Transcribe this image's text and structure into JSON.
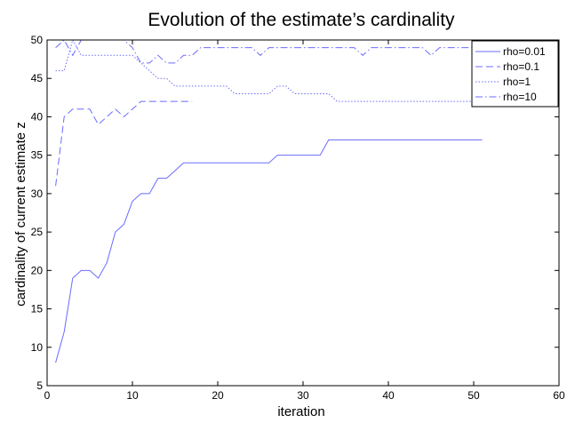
{
  "chart_data": {
    "type": "line",
    "title": "Evolution of the estimate’s cardinality",
    "xlabel": "iteration",
    "ylabel": "cardinality of current estimate z",
    "xlim": [
      0,
      60
    ],
    "ylim": [
      5,
      50
    ],
    "xticks": [
      0,
      10,
      20,
      30,
      40,
      50,
      60
    ],
    "yticks": [
      5,
      10,
      15,
      20,
      25,
      30,
      35,
      40,
      45,
      50
    ],
    "grid": false,
    "legend_position": "top-right",
    "line_color": "#6b6bff",
    "series": [
      {
        "name": "rho=0.01",
        "style": "solid",
        "x": [
          1,
          2,
          3,
          4,
          5,
          6,
          7,
          8,
          9,
          10,
          11,
          12,
          13,
          14,
          15,
          16,
          17,
          18,
          19,
          20,
          21,
          22,
          23,
          24,
          25,
          26,
          27,
          28,
          29,
          30,
          31,
          32,
          33,
          34,
          35,
          36,
          37,
          38,
          39,
          40,
          41,
          42,
          43,
          44,
          45,
          46,
          47,
          48,
          49,
          50,
          51
        ],
        "y": [
          8,
          12,
          19,
          20,
          20,
          19,
          21,
          25,
          26,
          29,
          30,
          30,
          32,
          32,
          33,
          34,
          34,
          34,
          34,
          34,
          34,
          34,
          34,
          34,
          34,
          34,
          35,
          35,
          35,
          35,
          35,
          35,
          37,
          37,
          37,
          37,
          37,
          37,
          37,
          37,
          37,
          37,
          37,
          37,
          37,
          37,
          37,
          37,
          37,
          37,
          37
        ]
      },
      {
        "name": "rho=0.1",
        "style": "dashed",
        "x": [
          1,
          2,
          3,
          4,
          5,
          6,
          7,
          8,
          9,
          10,
          11,
          12,
          13,
          14,
          15,
          16,
          17
        ],
        "y": [
          31,
          40,
          41,
          41,
          41,
          39,
          40,
          41,
          40,
          41,
          42,
          42,
          42,
          42,
          42,
          42,
          42
        ]
      },
      {
        "name": "rho=1",
        "style": "dotted",
        "x": [
          1,
          2,
          3,
          4,
          5,
          6,
          7,
          8,
          9,
          10,
          11,
          12,
          13,
          14,
          15,
          16,
          17,
          18,
          19,
          20,
          21,
          22,
          23,
          24,
          25,
          26,
          27,
          28,
          29,
          30,
          31,
          32,
          33,
          34,
          35,
          36,
          37,
          38,
          39,
          40,
          41,
          42,
          43,
          44,
          45,
          46,
          47,
          48,
          49,
          50,
          51
        ],
        "y": [
          46,
          46,
          50,
          48,
          48,
          48,
          48,
          48,
          48,
          48,
          47,
          46,
          45,
          45,
          44,
          44,
          44,
          44,
          44,
          44,
          44,
          43,
          43,
          43,
          43,
          43,
          44,
          44,
          43,
          43,
          43,
          43,
          43,
          42,
          42,
          42,
          42,
          42,
          42,
          42,
          42,
          42,
          42,
          42,
          42,
          42,
          42,
          42,
          42,
          42,
          42
        ]
      },
      {
        "name": "rho=10",
        "style": "dashdot",
        "x": [
          1,
          2,
          3,
          4,
          5,
          6,
          7,
          8,
          9,
          10,
          11,
          12,
          13,
          14,
          15,
          16,
          17,
          18,
          19,
          20,
          21,
          22,
          23,
          24,
          25,
          26,
          27,
          28,
          29,
          30,
          31,
          32,
          33,
          34,
          35,
          36,
          37,
          38,
          39,
          40,
          41,
          42,
          43,
          44,
          45,
          46,
          47,
          48,
          49,
          50,
          51
        ],
        "y": [
          49,
          50,
          48,
          50,
          50,
          50,
          50,
          50,
          50,
          49,
          47,
          47,
          48,
          47,
          47,
          48,
          48,
          49,
          49,
          49,
          49,
          49,
          49,
          49,
          48,
          49,
          49,
          49,
          49,
          49,
          49,
          49,
          49,
          49,
          49,
          49,
          48,
          49,
          49,
          49,
          49,
          49,
          49,
          49,
          48,
          49,
          49,
          49,
          49,
          49,
          49
        ]
      }
    ]
  }
}
